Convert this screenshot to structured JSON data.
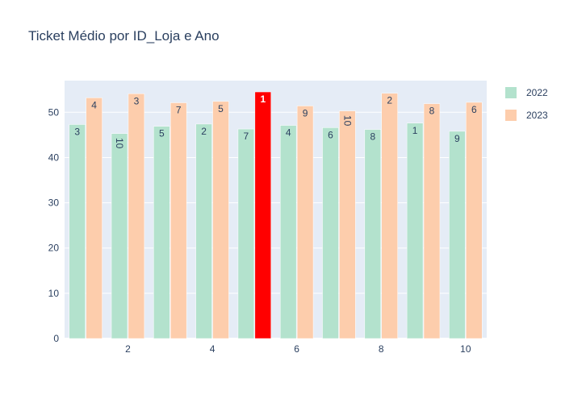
{
  "chart_data": {
    "type": "bar",
    "title": "Ticket Médio por ID_Loja e Ano",
    "xlabel": "",
    "ylabel": "",
    "x": [
      1,
      2,
      3,
      4,
      5,
      6,
      7,
      8,
      9,
      10
    ],
    "x_ticks": [
      "2",
      "4",
      "6",
      "8",
      "10"
    ],
    "y_ticks": [
      "0",
      "10",
      "20",
      "30",
      "40",
      "50"
    ],
    "ylim": [
      0,
      57
    ],
    "xlim": [
      0.5,
      10.5
    ],
    "grid": true,
    "legend_position": "top-right",
    "series": [
      {
        "name": "2022",
        "color": "#b3e2cd",
        "values": [
          47.3,
          45.3,
          46.9,
          47.4,
          46.3,
          47.1,
          46.6,
          46.2,
          47.6,
          45.8
        ],
        "labels": [
          "3",
          "10",
          "5",
          "2",
          "7",
          "4",
          "6",
          "8",
          "1",
          "9"
        ]
      },
      {
        "name": "2023",
        "color": "#fdcdac",
        "values": [
          53.2,
          54.1,
          52.1,
          52.4,
          54.5,
          51.4,
          50.3,
          54.2,
          51.9,
          52.2
        ],
        "labels": [
          "4",
          "3",
          "7",
          "5",
          "1",
          "9",
          "10",
          "2",
          "8",
          "6"
        ]
      }
    ],
    "highlight": {
      "series": "2023",
      "x": 5,
      "color": "#ff0000",
      "label_color": "#ffffff"
    }
  }
}
